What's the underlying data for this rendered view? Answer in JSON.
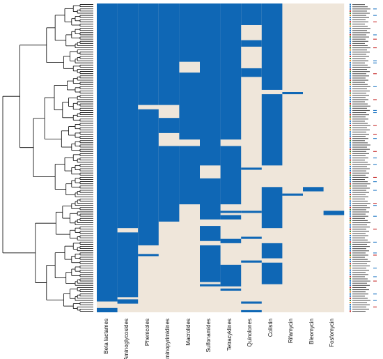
{
  "colors": {
    "present": "#0f67b5",
    "absent": "#efe6da",
    "tree": "#000000",
    "tag_blue": "#1f77c4",
    "tag_red": "#c62828",
    "tag_green": "#2e8b3e",
    "tag_orange": "#e08a2b"
  },
  "chart_data": {
    "type": "heatmap",
    "title": "",
    "xlabel": "",
    "ylabel": "",
    "legend": "none",
    "grid": false,
    "row_labels_legible": false,
    "n_rows": 143,
    "columns": [
      "Beta lactames",
      "Aminoglycosides",
      "Phenicoles",
      "aminopyrimidines",
      "Macrolides",
      "Sulfonamides",
      "Tetracyklines",
      "Quinolones",
      "Colistin",
      "Rifamycin",
      "Bleomycin",
      "Fosfomycin"
    ],
    "values_encoding": "1 = resistance class present (blue), 0 = absent (beige); each column lists runs of [start_row, end_row] (0-based, top to bottom) where value = 1",
    "presence_runs": [
      [
        [
          0,
          138
        ],
        [
          141,
          143
        ]
      ],
      [
        [
          0,
          104
        ],
        [
          106,
          136
        ],
        [
          137,
          139
        ]
      ],
      [
        [
          0,
          47
        ],
        [
          49,
          112
        ],
        [
          116,
          117
        ]
      ],
      [
        [
          0,
          47
        ],
        [
          53,
          60
        ],
        [
          66,
          101
        ]
      ],
      [
        [
          0,
          27
        ],
        [
          32,
          63
        ],
        [
          66,
          93
        ]
      ],
      [
        [
          0,
          75
        ],
        [
          81,
          100
        ],
        [
          103,
          110
        ],
        [
          112,
          129
        ],
        [
          130,
          131
        ]
      ],
      [
        [
          0,
          63
        ],
        [
          66,
          93
        ],
        [
          96,
          97
        ],
        [
          98,
          100
        ],
        [
          109,
          111
        ],
        [
          121,
          131
        ],
        [
          132,
          133
        ]
      ],
      [
        [
          0,
          10
        ],
        [
          17,
          20
        ],
        [
          30,
          34
        ],
        [
          76,
          77
        ],
        [
          96,
          97
        ],
        [
          108,
          109
        ],
        [
          119,
          120
        ],
        [
          138,
          139
        ],
        [
          142,
          143
        ]
      ],
      [
        [
          0,
          40
        ],
        [
          42,
          75
        ],
        [
          85,
          104
        ],
        [
          111,
          118
        ],
        [
          120,
          130
        ]
      ],
      [
        [
          41,
          42
        ],
        [
          88,
          89
        ]
      ],
      [
        [
          85,
          87
        ]
      ],
      [
        [
          96,
          98
        ]
      ]
    ]
  }
}
